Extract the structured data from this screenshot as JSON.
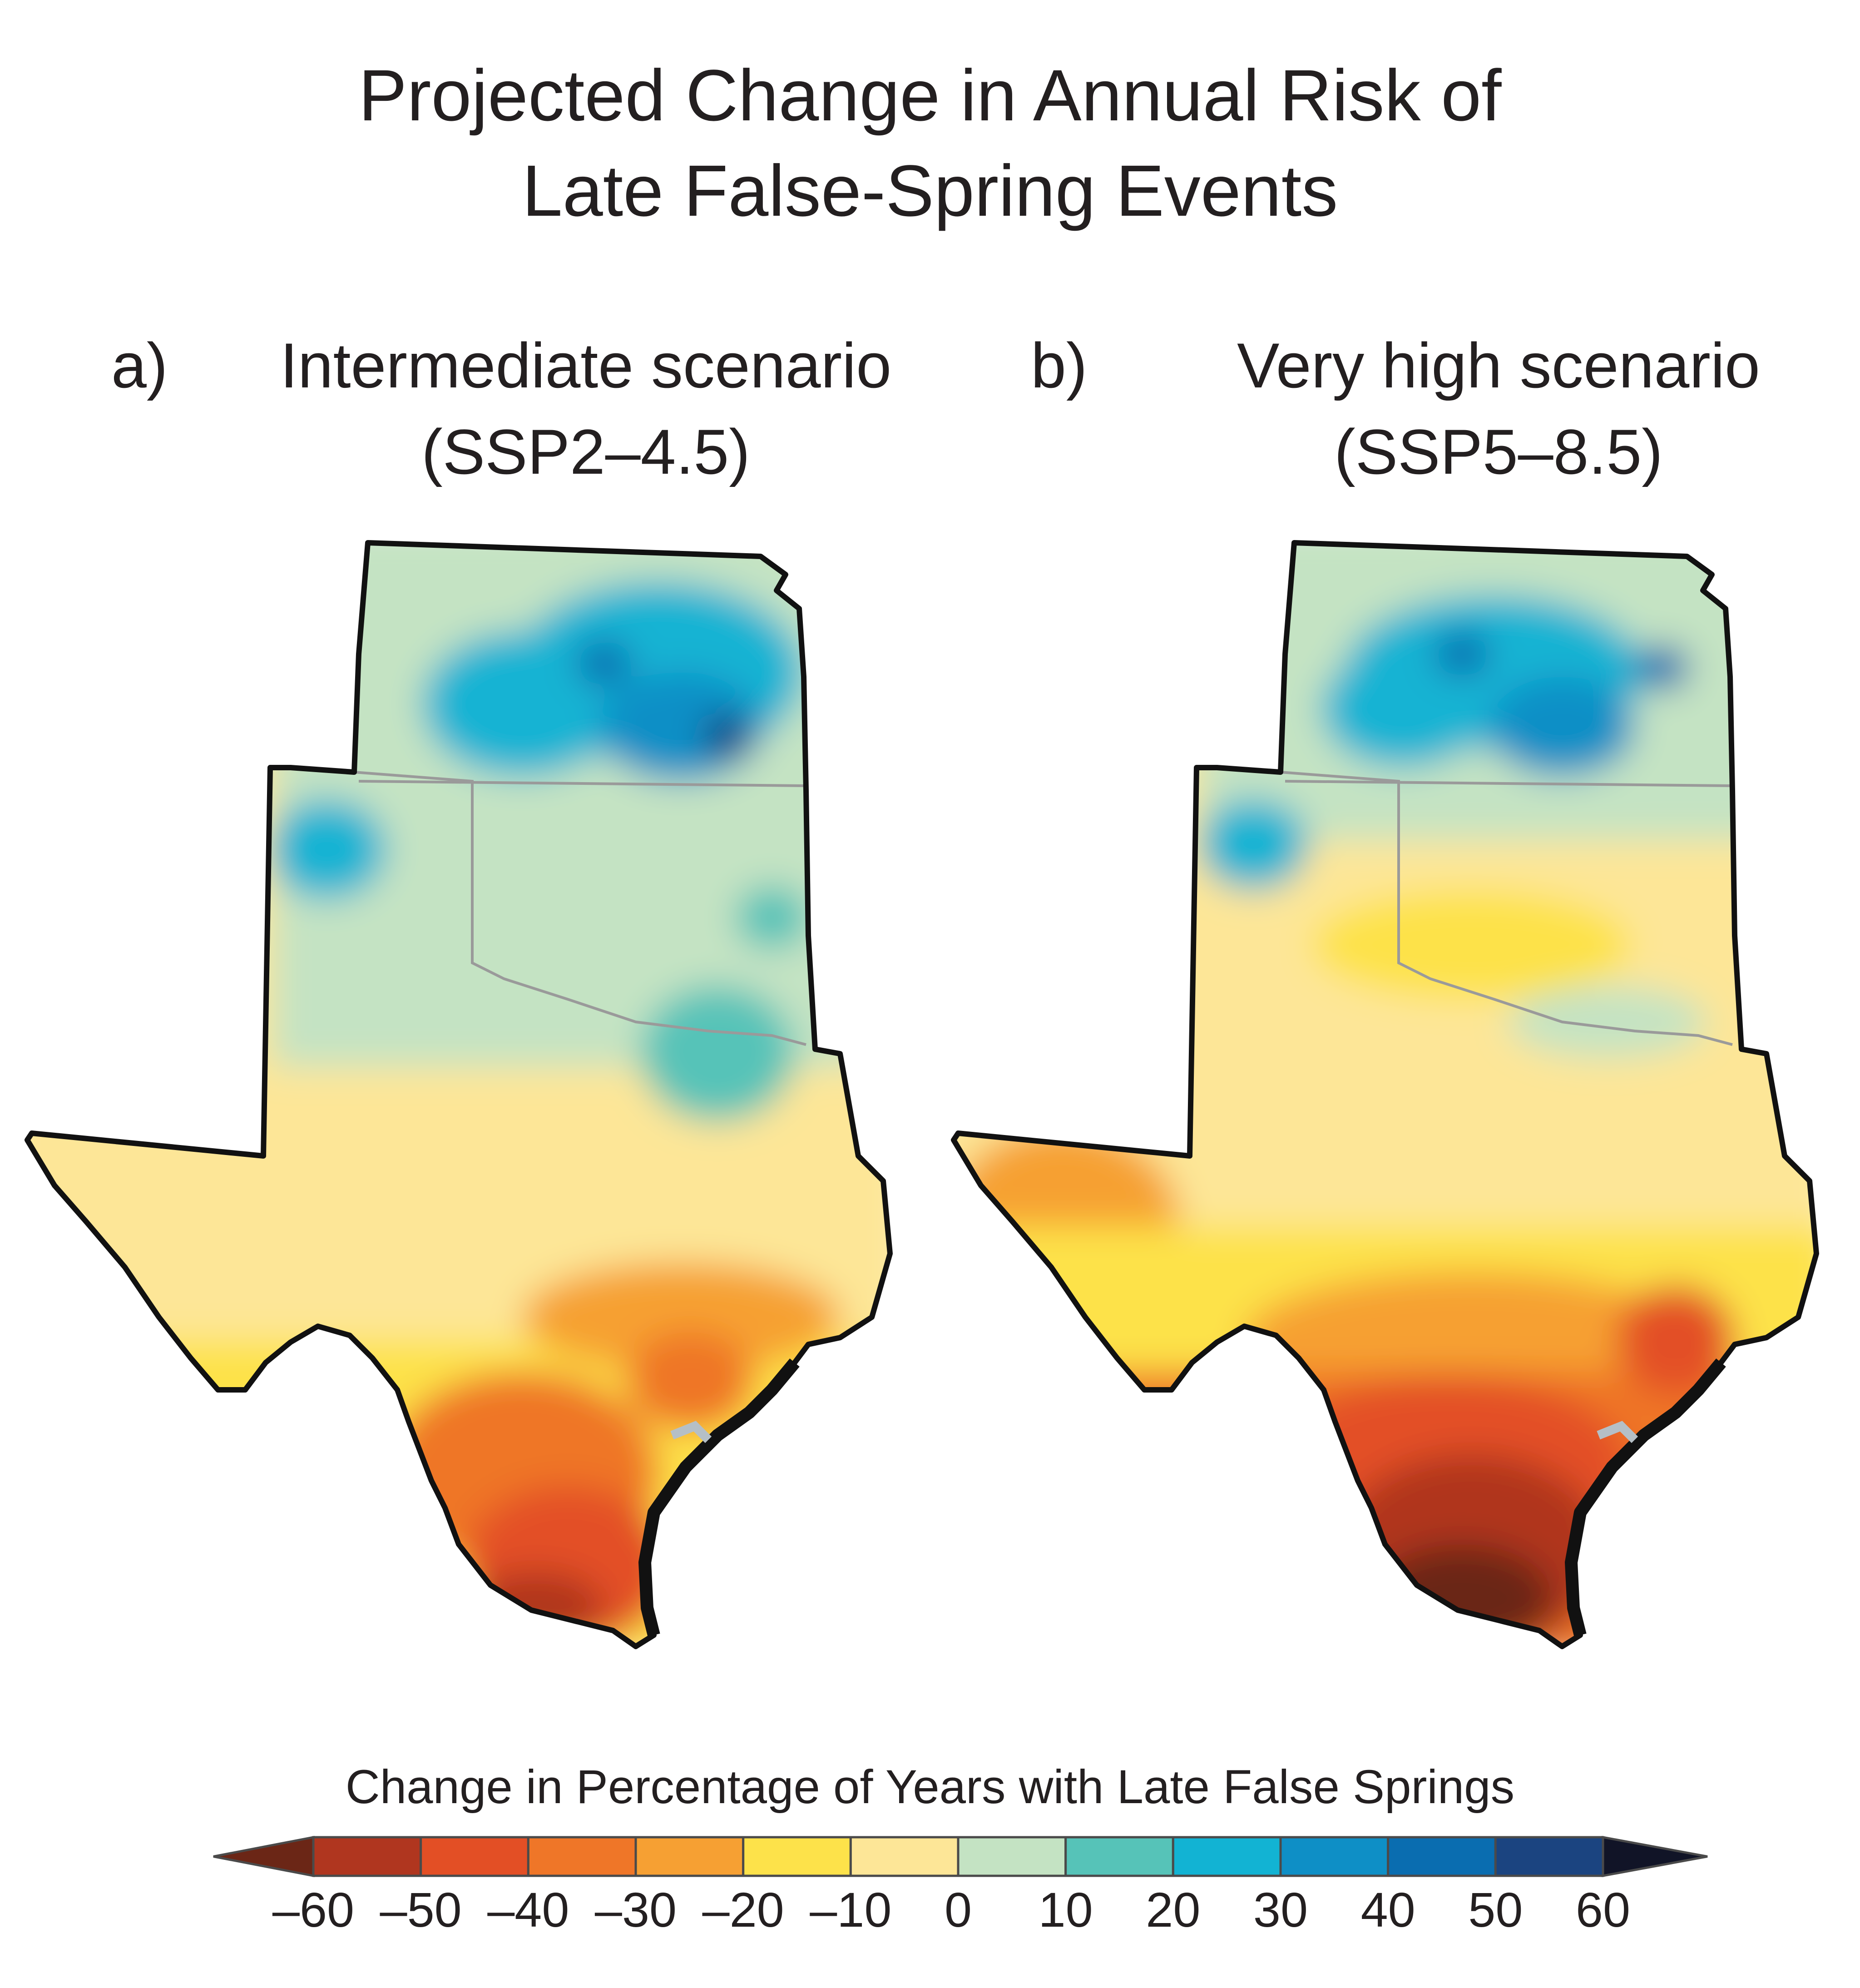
{
  "title": {
    "line1": "Projected Change in Annual Risk of",
    "line2": "Late False-Spring Events"
  },
  "panels": [
    {
      "letter": "a)",
      "line1": "Intermediate scenario",
      "line2": "(SSP2–4.5)"
    },
    {
      "letter": "b)",
      "line1": "Very high scenario",
      "line2": "(SSP5–8.5)"
    }
  ],
  "legend": {
    "title": "Change in Percentage of Years with Late False Springs",
    "ticks": [
      "–60",
      "–50",
      "–40",
      "–30",
      "–20",
      "–10",
      "0",
      "10",
      "20",
      "30",
      "40",
      "50",
      "60"
    ],
    "colors": [
      "#6b2616",
      "#b0361f",
      "#e34f25",
      "#ef7628",
      "#f6a033",
      "#fde24a",
      "#fde697",
      "#c4e3c3",
      "#56c3b8",
      "#12b3d3",
      "#0e8fc6",
      "#0a6db0",
      "#1b4480",
      "#111427"
    ]
  },
  "colors": {
    "outline": "#111111",
    "state_border": "#9a9a9a",
    "coastal_water": "#b5bfc6"
  }
}
